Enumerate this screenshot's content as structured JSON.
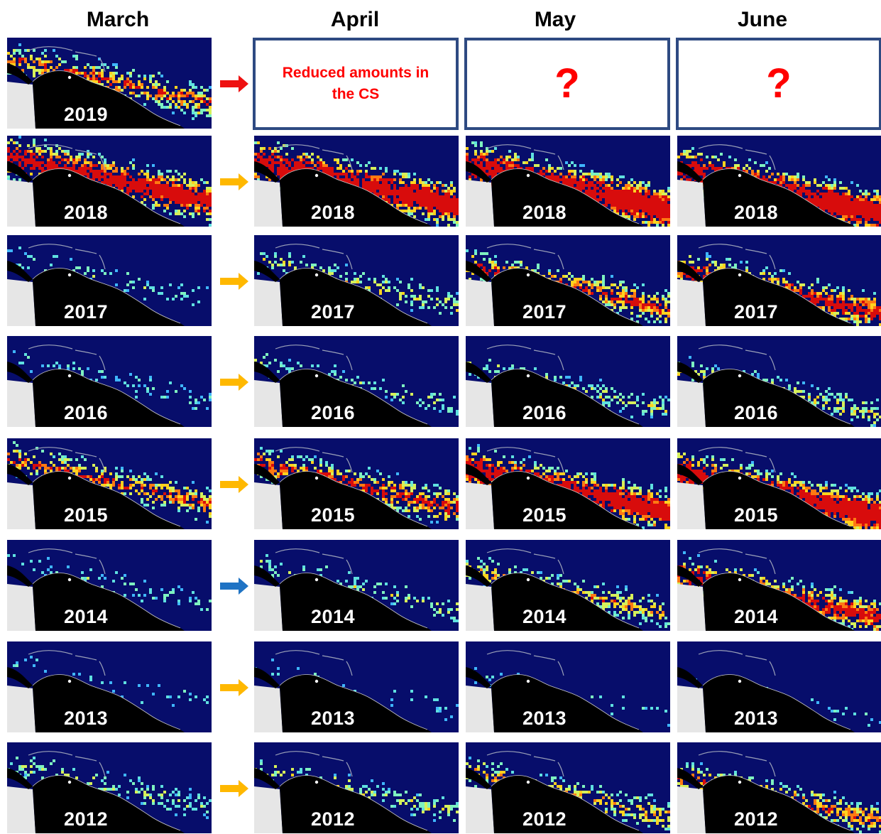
{
  "months": [
    "March",
    "April",
    "May",
    "June"
  ],
  "placeholders": {
    "april_2019": "Reduced amounts in the CS",
    "may_2019": "?",
    "june_2019": "?"
  },
  "colors": {
    "ocean": "#070d6b",
    "land": "#000000",
    "unmapped": "#e6e6e6",
    "placeholder_border": "#2e4a82",
    "placeholder_text": "#ff0000",
    "arrow_red": "#ee1111",
    "arrow_orange": "#ffb800",
    "arrow_blue": "#1f73c4"
  },
  "rows": [
    {
      "year": "2019",
      "arrow": "red",
      "density": [
        0.55,
        null,
        null,
        null
      ]
    },
    {
      "year": "2018",
      "arrow": "orange",
      "density": [
        0.85,
        0.9,
        0.95,
        0.95
      ]
    },
    {
      "year": "2017",
      "arrow": "orange",
      "density": [
        0.15,
        0.35,
        0.6,
        0.7
      ]
    },
    {
      "year": "2016",
      "arrow": "orange",
      "density": [
        0.1,
        0.2,
        0.3,
        0.35
      ]
    },
    {
      "year": "2015",
      "arrow": "orange",
      "density": [
        0.55,
        0.65,
        0.85,
        0.9
      ]
    },
    {
      "year": "2014",
      "arrow": "blue",
      "density": [
        0.15,
        0.25,
        0.45,
        0.7
      ]
    },
    {
      "year": "2013",
      "arrow": "orange",
      "density": [
        0.05,
        0.05,
        0.05,
        0.03
      ]
    },
    {
      "year": "2012",
      "arrow": "orange",
      "density": [
        0.25,
        0.3,
        0.45,
        0.55
      ]
    }
  ]
}
